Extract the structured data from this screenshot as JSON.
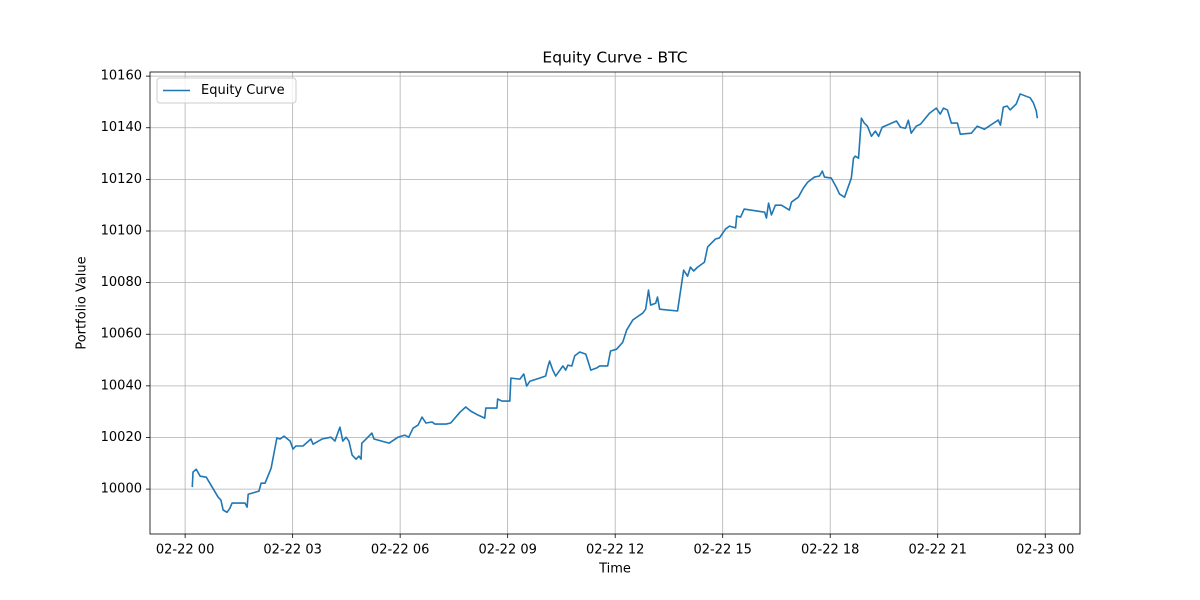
{
  "chart_data": {
    "type": "line",
    "title": "Equity Curve - BTC",
    "x_label": "Time",
    "y_label": "Portfolio Value",
    "x": [
      0.2,
      0.22,
      0.31,
      0.42,
      0.59,
      0.92,
      1.0,
      1.06,
      1.17,
      1.25,
      1.31,
      1.67,
      1.73,
      1.76,
      2.06,
      2.12,
      2.23,
      2.4,
      2.56,
      2.65,
      2.76,
      2.93,
      3.01,
      3.09,
      3.29,
      3.51,
      3.57,
      3.82,
      4.07,
      4.18,
      4.32,
      4.4,
      4.49,
      4.57,
      4.66,
      4.77,
      4.85,
      4.91,
      4.93,
      5.05,
      5.21,
      5.27,
      5.69,
      5.94,
      6.13,
      6.24,
      6.36,
      6.5,
      6.61,
      6.72,
      6.89,
      6.97,
      7.28,
      7.41,
      7.67,
      7.83,
      7.97,
      8.17,
      8.36,
      8.39,
      8.7,
      8.72,
      8.84,
      9.06,
      9.09,
      9.34,
      9.45,
      9.53,
      9.62,
      9.89,
      10.06,
      10.12,
      10.17,
      10.26,
      10.34,
      10.54,
      10.62,
      10.68,
      10.79,
      10.87,
      11.01,
      11.18,
      11.26,
      11.32,
      11.48,
      11.57,
      11.79,
      11.87,
      12.04,
      12.21,
      12.32,
      12.49,
      12.77,
      12.85,
      12.93,
      12.99,
      13.13,
      13.18,
      13.24,
      13.74,
      13.91,
      14.02,
      14.1,
      14.19,
      14.3,
      14.49,
      14.58,
      14.8,
      14.91,
      15.08,
      15.19,
      15.36,
      15.39,
      15.5,
      15.6,
      16.17,
      16.22,
      16.28,
      16.36,
      16.47,
      16.64,
      16.86,
      16.92,
      17.11,
      17.25,
      17.37,
      17.56,
      17.7,
      17.78,
      17.84,
      18.03,
      18.17,
      18.26,
      18.4,
      18.59,
      18.65,
      18.7,
      18.79,
      18.87,
      18.95,
      19.04,
      19.15,
      19.26,
      19.35,
      19.45,
      19.85,
      19.96,
      20.1,
      20.18,
      20.26,
      20.4,
      20.52,
      20.77,
      20.96,
      21.07,
      21.16,
      21.27,
      21.38,
      21.55,
      21.63,
      21.94,
      22.1,
      22.24,
      22.3,
      22.69,
      22.75,
      22.83,
      22.94,
      23.02,
      23.19,
      23.3,
      23.58,
      23.67,
      23.75,
      23.78
    ],
    "series": [
      {
        "name": "Equity Curve",
        "color": "#1f77b4",
        "values": [
          10000.8,
          10006.6,
          10007.7,
          10005,
          10004.6,
          9996.9,
          9995.7,
          9991.9,
          9991,
          9992.6,
          9994.6,
          9994.6,
          9993,
          9998,
          9999.2,
          10002.3,
          10002.3,
          10008.1,
          10019.8,
          10019.4,
          10020.5,
          10018.6,
          10015.5,
          10016.7,
          10016.7,
          10019.4,
          10017.4,
          10019.4,
          10020.1,
          10018.6,
          10024,
          10018.6,
          10020.1,
          10018.6,
          10013.2,
          10011.6,
          10012.8,
          10011.6,
          10017.8,
          10019.4,
          10021.7,
          10019.4,
          10017.8,
          10020.1,
          10020.9,
          10020.1,
          10023.6,
          10024.8,
          10027.9,
          10025.6,
          10026,
          10025.2,
          10025.2,
          10025.6,
          10029.8,
          10031.8,
          10030.2,
          10028.7,
          10027.5,
          10031.4,
          10031.4,
          10034.9,
          10034.1,
          10034.1,
          10043,
          10042.6,
          10044.6,
          10039.9,
          10041.8,
          10043,
          10043.8,
          10047.3,
          10049.6,
          10046.1,
          10043.8,
          10047.7,
          10046.1,
          10048,
          10047.7,
          10051.6,
          10053.1,
          10052.3,
          10048.8,
          10046.1,
          10046.9,
          10047.7,
          10047.7,
          10053.5,
          10054.2,
          10056.9,
          10061.6,
          10065.5,
          10068.2,
          10069.7,
          10077.1,
          10071.3,
          10072,
          10074.4,
          10069.7,
          10069,
          10084.8,
          10082.5,
          10086,
          10084.5,
          10086,
          10087.9,
          10093.8,
          10096.9,
          10097.3,
          10100.8,
          10101.9,
          10101.2,
          10105.8,
          10105.4,
          10108.5,
          10107.3,
          10105,
          10110.8,
          10106.2,
          10110,
          10110,
          10108.1,
          10111.2,
          10113.1,
          10116.6,
          10118.9,
          10120.9,
          10121.3,
          10123.2,
          10120.9,
          10120.5,
          10117,
          10114.3,
          10113.1,
          10120.5,
          10128.2,
          10129,
          10128.2,
          10143.7,
          10141.8,
          10140.6,
          10136.7,
          10138.7,
          10136.7,
          10140.2,
          10142.6,
          10140.2,
          10139.8,
          10142.9,
          10137.9,
          10140.6,
          10141.4,
          10145.6,
          10147.6,
          10145.3,
          10147.6,
          10146.9,
          10141.8,
          10141.8,
          10137.5,
          10137.9,
          10140.6,
          10139.8,
          10139.4,
          10143,
          10141,
          10148,
          10148.4,
          10146.9,
          10149.2,
          10153.1,
          10151.6,
          10149.6,
          10146.5,
          10143.7
        ]
      }
    ],
    "xlim": [
      -0.98,
      24.97
    ],
    "ylim": [
      9982.6,
      10161.6
    ],
    "xticks": [
      {
        "value": 0,
        "label": "02-22 00"
      },
      {
        "value": 3,
        "label": "02-22 03"
      },
      {
        "value": 6,
        "label": "02-22 06"
      },
      {
        "value": 9,
        "label": "02-22 09"
      },
      {
        "value": 12,
        "label": "02-22 12"
      },
      {
        "value": 15,
        "label": "02-22 15"
      },
      {
        "value": 18,
        "label": "02-22 18"
      },
      {
        "value": 21,
        "label": "02-22 21"
      },
      {
        "value": 24,
        "label": "02-23 00"
      }
    ],
    "yticks": [
      10000,
      10020,
      10040,
      10060,
      10080,
      10100,
      10120,
      10140,
      10160
    ],
    "grid": true,
    "legend": "upper-left"
  }
}
